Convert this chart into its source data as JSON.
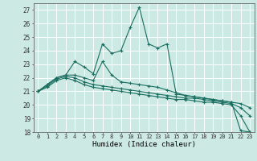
{
  "xlabel": "Humidex (Indice chaleur)",
  "background_color": "#cce9e4",
  "line_color": "#1a6e60",
  "grid_color": "#ffffff",
  "xlim": [
    -0.5,
    23.5
  ],
  "ylim": [
    18,
    27.5
  ],
  "yticks": [
    18,
    19,
    20,
    21,
    22,
    23,
    24,
    25,
    26,
    27
  ],
  "xticks": [
    0,
    1,
    2,
    3,
    4,
    5,
    6,
    7,
    8,
    9,
    10,
    11,
    12,
    13,
    14,
    15,
    16,
    17,
    18,
    19,
    20,
    21,
    22,
    23
  ],
  "series": [
    [
      21.0,
      21.5,
      22.0,
      22.2,
      23.2,
      22.8,
      22.3,
      24.5,
      23.8,
      24.0,
      25.7,
      27.2,
      24.5,
      24.2,
      24.5,
      20.8,
      20.7,
      20.6,
      20.5,
      20.4,
      20.3,
      20.2,
      18.1,
      18.0
    ],
    [
      21.0,
      21.5,
      22.0,
      22.2,
      22.2,
      22.0,
      21.8,
      23.2,
      22.2,
      21.7,
      21.6,
      21.5,
      21.4,
      21.3,
      21.1,
      20.9,
      20.7,
      20.6,
      20.5,
      20.4,
      20.3,
      20.2,
      20.1,
      19.8
    ],
    [
      21.0,
      21.4,
      21.9,
      22.1,
      22.0,
      21.7,
      21.5,
      21.4,
      21.3,
      21.2,
      21.1,
      21.0,
      20.9,
      20.8,
      20.7,
      20.6,
      20.5,
      20.5,
      20.4,
      20.3,
      20.2,
      20.1,
      19.8,
      19.2
    ],
    [
      21.0,
      21.3,
      21.8,
      22.0,
      21.8,
      21.5,
      21.3,
      21.2,
      21.1,
      21.0,
      20.9,
      20.8,
      20.7,
      20.6,
      20.5,
      20.4,
      20.4,
      20.3,
      20.2,
      20.2,
      20.1,
      20.0,
      19.2,
      18.0
    ]
  ]
}
